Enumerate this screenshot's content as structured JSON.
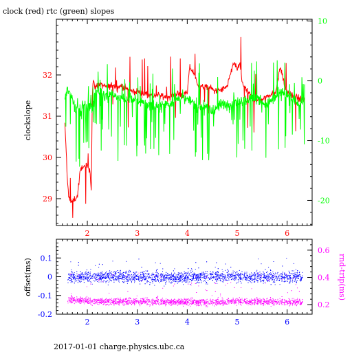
{
  "chart_data": [
    {
      "type": "line",
      "title": "clock (red) rtc (green) slopes",
      "xlabel": "",
      "ylabel": "clockslope",
      "xlim": [
        1.38,
        6.5
      ],
      "xticks": [
        2,
        3,
        4,
        5,
        6
      ],
      "xtick_labels": [
        "2",
        "3",
        "4",
        "5",
        "6"
      ],
      "ylim": [
        28.35,
        33.35
      ],
      "yticks": [
        29,
        30,
        31,
        32
      ],
      "ytick_labels": [
        "29",
        "30",
        "31",
        "32"
      ],
      "y2label": "",
      "y2lim": [
        -24.2,
        10.3
      ],
      "y2ticks": [
        -20,
        -10,
        0,
        10
      ],
      "y2tick_labels": [
        "-20",
        "-10",
        "0",
        "10"
      ],
      "series": [
        {
          "name": "clock",
          "color": "#ff0000",
          "axis": "left",
          "x": [
            1.55,
            1.58,
            1.6,
            1.63,
            1.66,
            1.7,
            1.75,
            1.8,
            1.85,
            1.9,
            1.95,
            2.0,
            2.05,
            2.08,
            2.1,
            2.12,
            2.15,
            2.2,
            2.3,
            2.4,
            2.5,
            2.6,
            2.7,
            2.8,
            2.9,
            3.0,
            3.1,
            3.2,
            3.3,
            3.4,
            3.5,
            3.6,
            3.7,
            3.8,
            3.9,
            4.0,
            4.05,
            4.1,
            4.15,
            4.2,
            4.3,
            4.4,
            4.45,
            4.5,
            4.55,
            4.6,
            4.7,
            4.8,
            4.9,
            4.95,
            5.0,
            5.05,
            5.1,
            5.15,
            5.2,
            5.3,
            5.4,
            5.5,
            5.6,
            5.7,
            5.75,
            5.8,
            5.85,
            5.9,
            5.95,
            6.0,
            6.1,
            6.2,
            6.3,
            6.35
          ],
          "y": [
            30.8,
            30.1,
            29.4,
            29.1,
            28.9,
            28.95,
            29.0,
            29.05,
            29.6,
            29.8,
            29.75,
            29.8,
            29.7,
            29.2,
            31.6,
            31.85,
            31.7,
            31.75,
            31.75,
            31.7,
            31.75,
            31.7,
            31.75,
            31.65,
            31.6,
            31.6,
            31.55,
            31.55,
            31.5,
            31.5,
            31.5,
            31.45,
            31.5,
            31.55,
            31.5,
            31.55,
            32.2,
            32.1,
            32.0,
            31.75,
            31.7,
            31.7,
            31.7,
            31.65,
            31.6,
            31.6,
            31.65,
            31.7,
            32.2,
            32.3,
            32.1,
            32.3,
            31.8,
            31.7,
            31.6,
            31.45,
            31.4,
            31.4,
            31.5,
            31.55,
            31.5,
            31.8,
            32.15,
            32.05,
            31.7,
            31.6,
            31.5,
            31.45,
            31.4,
            31.4
          ]
        },
        {
          "name": "rtc",
          "color": "#00ff00",
          "axis": "right",
          "x": [
            1.55,
            1.6,
            1.65,
            1.7,
            1.75,
            1.8,
            1.85,
            1.9,
            1.95,
            2.0,
            2.05,
            2.1,
            2.15,
            2.2,
            2.3,
            2.4,
            2.5,
            2.6,
            2.7,
            2.8,
            2.9,
            3.0,
            3.1,
            3.2,
            3.3,
            3.4,
            3.5,
            3.6,
            3.7,
            3.8,
            3.9,
            4.0,
            4.1,
            4.2,
            4.3,
            4.4,
            4.5,
            4.6,
            4.7,
            4.8,
            4.9,
            5.0,
            5.1,
            5.2,
            5.3,
            5.4,
            5.5,
            5.6,
            5.7,
            5.8,
            5.9,
            6.0,
            6.1,
            6.2,
            6.3,
            6.35
          ],
          "y": [
            -2.5,
            -1.5,
            -2.0,
            -3.0,
            -4.5,
            -4.6,
            -4.3,
            -4.1,
            -4.2,
            -4.3,
            -4.2,
            -4.3,
            -2.0,
            -2.0,
            -1.8,
            -2.4,
            -2.0,
            -3.0,
            -2.8,
            -3.2,
            -3.0,
            -3.2,
            -3.5,
            -3.8,
            -4.0,
            -4.2,
            -4.3,
            -3.8,
            -3.5,
            -3.0,
            -2.8,
            -3.2,
            -3.5,
            -4.0,
            -4.2,
            -4.5,
            -5.0,
            -4.5,
            -4.0,
            -3.8,
            -3.9,
            -3.5,
            -3.2,
            -3.0,
            -2.8,
            -3.0,
            -3.5,
            -3.8,
            -3.2,
            -2.5,
            -2.0,
            -2.5,
            -3.0,
            -3.5,
            -3.6,
            -3.6
          ]
        }
      ],
      "grid": false,
      "legend": "none"
    },
    {
      "type": "scatter",
      "title": "",
      "xlabel": "",
      "ylabel": "offset(ms)",
      "xlim": [
        1.38,
        6.5
      ],
      "xticks": [
        2,
        3,
        4,
        5,
        6
      ],
      "xtick_labels": [
        "2",
        "3",
        "4",
        "5",
        "6"
      ],
      "ylim": [
        -0.2,
        0.2
      ],
      "yticks": [
        -0.2,
        -0.1,
        0,
        0.1
      ],
      "ytick_labels": [
        "-0.2",
        "-0.1",
        "0",
        "0.1"
      ],
      "y2label": "rnd-trip(ms)",
      "y2lim": [
        0.13,
        0.68
      ],
      "y2ticks": [
        0.2,
        0.4,
        0.6
      ],
      "y2tick_labels": [
        "0.2",
        "0.4",
        "0.6"
      ],
      "series": [
        {
          "name": "offset",
          "color": "#0000ff",
          "axis": "left",
          "x": [
            1.6,
            2.0,
            2.5,
            3.0,
            3.5,
            4.0,
            4.5,
            5.0,
            5.5,
            6.0,
            6.3
          ],
          "y": [
            0.0,
            0.0,
            0.005,
            0.0,
            0.0,
            -0.005,
            0.005,
            0.0,
            0.0,
            0.0,
            0.0
          ],
          "spread": 0.03
        },
        {
          "name": "rnd-trip",
          "color": "#ff00ff",
          "axis": "right",
          "x": [
            1.6,
            2.0,
            2.5,
            3.0,
            3.5,
            4.0,
            4.5,
            5.0,
            5.5,
            6.0,
            6.3
          ],
          "y": [
            0.24,
            0.23,
            0.225,
            0.225,
            0.225,
            0.22,
            0.22,
            0.225,
            0.225,
            0.22,
            0.22
          ],
          "spread": 0.025
        }
      ],
      "grid": false,
      "legend": "none"
    }
  ],
  "footer": "2017-01-01 charge.physics.ubc.ca"
}
